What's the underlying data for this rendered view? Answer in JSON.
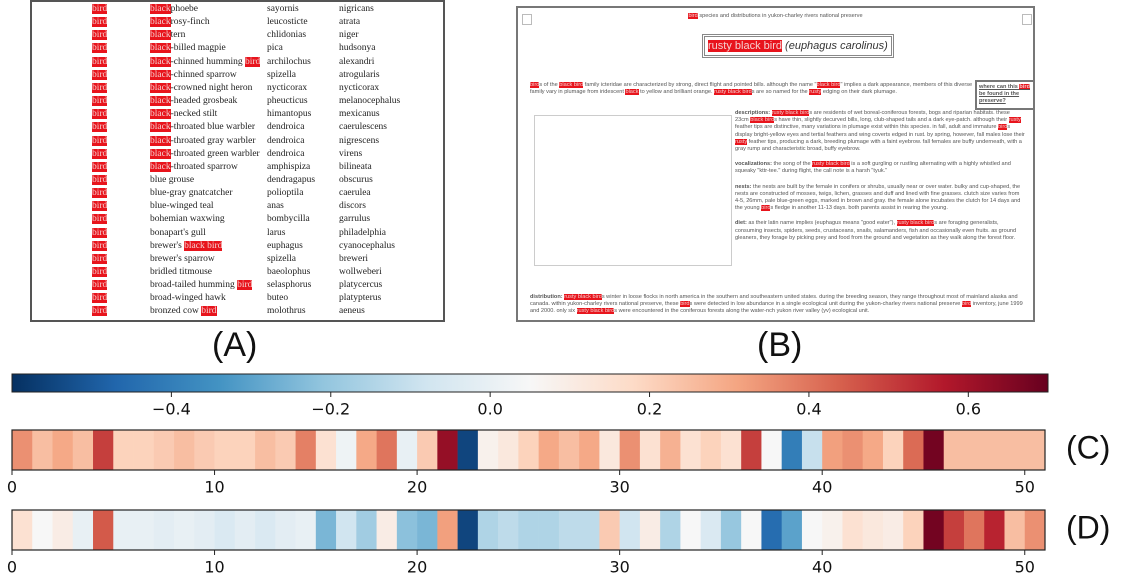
{
  "panel_a": {
    "label": "(A)",
    "highlight_color": "#e8141c",
    "rows": [
      {
        "tag": "bird",
        "name": [
          {
            "text": "black",
            "highlight": true
          },
          {
            "text": "phoebe"
          }
        ],
        "genus": "sayornis",
        "species": "nigricans"
      },
      {
        "tag": "bird",
        "name": [
          {
            "text": "black",
            "highlight": true
          },
          {
            "text": "rosy-finch"
          }
        ],
        "genus": "leucosticte",
        "species": "atrata"
      },
      {
        "tag": "bird",
        "name": [
          {
            "text": "black",
            "highlight": true
          },
          {
            "text": "tern"
          }
        ],
        "genus": "chlidonias",
        "species": "niger"
      },
      {
        "tag": "bird",
        "name": [
          {
            "text": "black",
            "highlight": true
          },
          {
            "text": "-billed magpie"
          }
        ],
        "genus": "pica",
        "species": "hudsonya"
      },
      {
        "tag": "bird",
        "name": [
          {
            "text": "black",
            "highlight": true
          },
          {
            "text": "-chinned humming "
          },
          {
            "text": "bird",
            "highlight": true
          }
        ],
        "genus": "archilochus",
        "species": "alexandri"
      },
      {
        "tag": "bird",
        "name": [
          {
            "text": "black",
            "highlight": true
          },
          {
            "text": "-chinned sparrow"
          }
        ],
        "genus": "spizella",
        "species": "atrogularis"
      },
      {
        "tag": "bird",
        "name": [
          {
            "text": "black",
            "highlight": true
          },
          {
            "text": "-crowned night heron"
          }
        ],
        "genus": "nycticorax",
        "species": "nycticorax"
      },
      {
        "tag": "bird",
        "name": [
          {
            "text": "black",
            "highlight": true
          },
          {
            "text": "-headed grosbeak"
          }
        ],
        "genus": "pheucticus",
        "species": "melanocephalus"
      },
      {
        "tag": "bird",
        "name": [
          {
            "text": "black",
            "highlight": true
          },
          {
            "text": "-necked stilt"
          }
        ],
        "genus": "himantopus",
        "species": "mexicanus"
      },
      {
        "tag": "bird",
        "name": [
          {
            "text": "black",
            "highlight": true
          },
          {
            "text": "-throated blue warbler"
          }
        ],
        "genus": "dendroica",
        "species": "caerulescens"
      },
      {
        "tag": "bird",
        "name": [
          {
            "text": "black",
            "highlight": true
          },
          {
            "text": "-throated gray warbler"
          }
        ],
        "genus": "dendroica",
        "species": "nigrescens"
      },
      {
        "tag": "bird",
        "name": [
          {
            "text": "black",
            "highlight": true
          },
          {
            "text": "-throated green warbler"
          }
        ],
        "genus": "dendroica",
        "species": "virens"
      },
      {
        "tag": "bird",
        "name": [
          {
            "text": "black",
            "highlight": true
          },
          {
            "text": "-throated sparrow"
          }
        ],
        "genus": "amphispiza",
        "species": "bilineata"
      },
      {
        "tag": "bird",
        "name": [
          {
            "text": "blue grouse"
          }
        ],
        "genus": "dendragapus",
        "species": "obscurus"
      },
      {
        "tag": "bird",
        "name": [
          {
            "text": "blue-gray gnatcatcher"
          }
        ],
        "genus": "polioptila",
        "species": "caerulea"
      },
      {
        "tag": "bird",
        "name": [
          {
            "text": "blue-winged teal"
          }
        ],
        "genus": "anas",
        "species": "discors"
      },
      {
        "tag": "bird",
        "name": [
          {
            "text": "bohemian waxwing"
          }
        ],
        "genus": "bombycilla",
        "species": "garrulus"
      },
      {
        "tag": "bird",
        "name": [
          {
            "text": "bonapart's gull"
          }
        ],
        "genus": "larus",
        "species": "philadelphia"
      },
      {
        "tag": "bird",
        "name": [
          {
            "text": "brewer's "
          },
          {
            "text": "black bird",
            "highlight": true
          }
        ],
        "genus": "euphagus",
        "species": "cyanocephalus"
      },
      {
        "tag": "bird",
        "name": [
          {
            "text": "brewer's sparrow"
          }
        ],
        "genus": "spizella",
        "species": "breweri"
      },
      {
        "tag": "bird",
        "name": [
          {
            "text": "bridled titmouse"
          }
        ],
        "genus": "baeolophus",
        "species": "wollweberi"
      },
      {
        "tag": "bird",
        "name": [
          {
            "text": "broad-tailed humming "
          },
          {
            "text": "bird",
            "highlight": true
          }
        ],
        "genus": "selasphorus",
        "species": "platycercus"
      },
      {
        "tag": "bird",
        "name": [
          {
            "text": "broad-winged hawk"
          }
        ],
        "genus": "buteo",
        "species": "platypterus"
      },
      {
        "tag": "bird",
        "name": [
          {
            "text": "bronzed cow "
          },
          {
            "text": "bird",
            "highlight": true
          }
        ],
        "genus": "molothrus",
        "species": "aeneus"
      }
    ]
  },
  "panel_b": {
    "label": "(B)",
    "title": [
      {
        "text": "bird",
        "highlight": true
      },
      {
        "text": " species and distributions in yukon-charley rivers national preserve"
      }
    ],
    "heading": [
      {
        "text": "rusty black bird",
        "highlight": true
      },
      {
        "text": " (euphagus carolinus)",
        "italic": true
      }
    ],
    "intro": [
      {
        "text": "bird",
        "highlight": true
      },
      {
        "text": "s of the "
      },
      {
        "text": "black bird",
        "highlight": true
      },
      {
        "text": " family icteridae are characterized by strong, direct flight and pointed bills. although the name \""
      },
      {
        "text": "black bird",
        "highlight": true
      },
      {
        "text": "\" implies a dark appearance, members of this diverse family vary in plumage from iridescent "
      },
      {
        "text": "black",
        "highlight": true
      },
      {
        "text": " to yellow and brilliant orange. "
      },
      {
        "text": "rusty black bird",
        "highlight": true
      },
      {
        "text": "s are so named for the "
      },
      {
        "text": "rusty",
        "highlight": true
      },
      {
        "text": " edging on their dark plumage."
      }
    ],
    "sidebar": [
      {
        "text": "where can this "
      },
      {
        "text": "bird",
        "highlight": true
      },
      {
        "text": " be found in the preserve?"
      }
    ],
    "sections": [
      [
        {
          "text": "descriptions: ",
          "bold": true
        },
        {
          "text": "rusty black bird",
          "highlight": true
        },
        {
          "text": "s are residents of wet boreal-coniferous forests, bogs and riparian habitats. these 23cm "
        },
        {
          "text": "black bird",
          "highlight": true
        },
        {
          "text": "s have thin, slightly decurved bills, long, club-shaped tails and a dark eye-patch. although their "
        },
        {
          "text": "rusty",
          "highlight": true
        },
        {
          "text": " feather tips are distinctive, many variations in plumage exist within this species. in fall, adult and immature "
        },
        {
          "text": "bird",
          "highlight": true
        },
        {
          "text": "s display bright-yellow eyes and tertial feathers and wing coverts edged in rust. by spring, however, fall males lose their "
        },
        {
          "text": "rusty",
          "highlight": true
        },
        {
          "text": " feather tips, producing a dark, breeding plumage with a faint eyebrow. fall females are buffy underneath, with a gray rump and characteristic broad, buffy eyebrow."
        }
      ],
      [
        {
          "text": "vocalizations: ",
          "bold": true
        },
        {
          "text": "the song of the "
        },
        {
          "text": "rusty black bird",
          "highlight": true
        },
        {
          "text": " is a soft gurgling or rustling alternating with a highly whistled and squeaky \"kttr-tee.\" during flight, the call note is a harsh \"tyuk.\""
        }
      ],
      [
        {
          "text": "nests: ",
          "bold": true
        },
        {
          "text": "the nests are built by the female in conifers or shrubs, usually near or over water. bulky and cup-shaped, the nests are constructed of mosses, twigs, lichen, grasses and duff and lined with fine grasses. clutch size varies from 4-5, 26mm, pale blue-green eggs, marked in brown and gray. the female alone incubates the clutch for 14 days and the young "
        },
        {
          "text": "bird",
          "highlight": true
        },
        {
          "text": "s fledge in another 11-13 days. both parents assist in rearing the young."
        }
      ],
      [
        {
          "text": "diet: ",
          "bold": true
        },
        {
          "text": "as their latin name implies (euphagus means \"good eater\"), "
        },
        {
          "text": "rusty black bird",
          "highlight": true
        },
        {
          "text": "s are foraging generalists, consuming insects, spiders, seeds, crustaceans, snails, salamanders, fish and occasionally even fruits. as ground gleaners, they forage by picking prey and food from the ground and vegetation as they walk along the forest floor."
        }
      ]
    ],
    "distribution": [
      {
        "text": "distribution: ",
        "bold": true
      },
      {
        "text": "rusty black bird",
        "highlight": true
      },
      {
        "text": "s winter in loose flocks in north america in the southern and southeastern united states. during the breeding season, they range throughout most of mainland alaska and canada. within yukon-charley rivers national preserve, these "
      },
      {
        "text": "bird",
        "highlight": true
      },
      {
        "text": "s were detected in low abundance in a single ecological unit during the yukon-charley rivers national preserve "
      },
      {
        "text": "bird",
        "highlight": true
      },
      {
        "text": " inventory, june 1999 and 2000. only six "
      },
      {
        "text": "rusty black bird",
        "highlight": true
      },
      {
        "text": "s were encountered in the coniferous forests along the water-nch yukon river valley (yv) ecological unit."
      }
    ]
  },
  "chart_data": {
    "type": "heatmap",
    "colorbar": {
      "lim": [
        -0.6,
        0.7
      ],
      "ticks": [
        {
          "value": -0.4,
          "label": "−0.4"
        },
        {
          "value": -0.2,
          "label": "−0.2"
        },
        {
          "value": 0,
          "label": "0.0"
        },
        0.2,
        0.4,
        0.6
      ],
      "colors": [
        "#053061",
        "#2166ac",
        "#4393c3",
        "#92c5de",
        "#d1e5f0",
        "#f7f7f7",
        "#fddbc7",
        "#f4a582",
        "#d6604d",
        "#b2182b",
        "#67001f"
      ]
    },
    "xlim": [
      0,
      51
    ],
    "xticks": [
      0,
      10,
      20,
      30,
      40,
      50
    ],
    "series": [
      {
        "name": "(C)",
        "values": [
          0.35,
          0.25,
          0.3,
          0.25,
          0.5,
          0.2,
          0.2,
          0.22,
          0.25,
          0.22,
          0.2,
          0.2,
          0.25,
          0.22,
          0.38,
          0.15,
          0.02,
          0.3,
          0.4,
          0.0,
          0.22,
          0.62,
          -0.55,
          0.08,
          0.12,
          0.2,
          0.3,
          0.25,
          0.3,
          0.12,
          0.35,
          0.15,
          0.28,
          0.15,
          0.2,
          0.15,
          0.5,
          0.05,
          -0.4,
          -0.1,
          0.32,
          0.35,
          0.3,
          0.2,
          0.42,
          0.68,
          0.25,
          0.25,
          0.25,
          0.25,
          0.25
        ]
      },
      {
        "name": "(D)",
        "values": [
          0.15,
          0.05,
          0.1,
          0.0,
          0.45,
          0.0,
          0.0,
          -0.02,
          0.0,
          -0.02,
          -0.05,
          -0.02,
          -0.05,
          -0.02,
          0.0,
          -0.25,
          -0.08,
          -0.18,
          0.1,
          -0.22,
          -0.25,
          0.32,
          -0.55,
          -0.15,
          -0.12,
          -0.15,
          -0.15,
          -0.12,
          -0.12,
          0.22,
          -0.08,
          0.1,
          -0.15,
          0.05,
          -0.05,
          -0.2,
          0.05,
          -0.45,
          -0.3,
          0.05,
          0.08,
          0.15,
          0.12,
          0.1,
          0.2,
          0.68,
          0.5,
          0.4,
          0.55,
          0.25,
          0.35
        ]
      }
    ]
  }
}
